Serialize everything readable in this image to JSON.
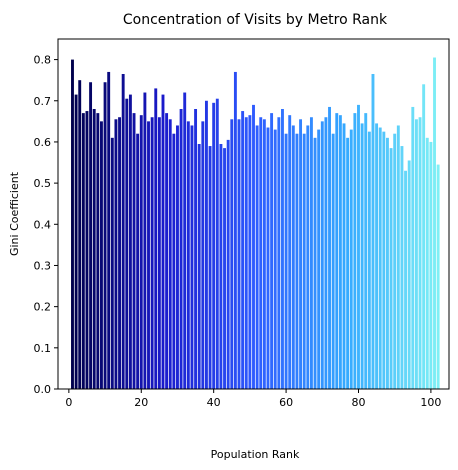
{
  "chart_data": {
    "type": "bar",
    "title": "Concentration of Visits by Metro Rank",
    "xlabel": "Population Rank",
    "ylabel": "Gini Coefficient",
    "xlim": [
      -3,
      105
    ],
    "ylim": [
      0,
      0.85
    ],
    "xticks": [
      0,
      20,
      40,
      60,
      80,
      100
    ],
    "yticks": [
      0.0,
      0.1,
      0.2,
      0.3,
      0.4,
      0.5,
      0.6,
      0.7,
      0.8
    ],
    "colormap": [
      "#00004d",
      "#1a1acc",
      "#2e5bff",
      "#35aaff",
      "#7ff0f5"
    ],
    "x": [
      1,
      2,
      3,
      4,
      5,
      6,
      7,
      8,
      9,
      10,
      11,
      12,
      13,
      14,
      15,
      16,
      17,
      18,
      19,
      20,
      21,
      22,
      23,
      24,
      25,
      26,
      27,
      28,
      29,
      30,
      31,
      32,
      33,
      34,
      35,
      36,
      37,
      38,
      39,
      40,
      41,
      42,
      43,
      44,
      45,
      46,
      47,
      48,
      49,
      50,
      51,
      52,
      53,
      54,
      55,
      56,
      57,
      58,
      59,
      60,
      61,
      62,
      63,
      64,
      65,
      66,
      67,
      68,
      69,
      70,
      71,
      72,
      73,
      74,
      75,
      76,
      77,
      78,
      79,
      80,
      81,
      82,
      83,
      84,
      85,
      86,
      87,
      88,
      89,
      90,
      91,
      92,
      93,
      94,
      95,
      96,
      97,
      98,
      99,
      100,
      101,
      102
    ],
    "values": [
      0.8,
      0.715,
      0.75,
      0.67,
      0.675,
      0.745,
      0.68,
      0.67,
      0.65,
      0.745,
      0.77,
      0.61,
      0.655,
      0.66,
      0.765,
      0.705,
      0.715,
      0.67,
      0.62,
      0.665,
      0.72,
      0.65,
      0.66,
      0.73,
      0.66,
      0.715,
      0.67,
      0.655,
      0.62,
      0.64,
      0.68,
      0.72,
      0.65,
      0.64,
      0.68,
      0.595,
      0.65,
      0.7,
      0.59,
      0.695,
      0.705,
      0.595,
      0.585,
      0.605,
      0.655,
      0.77,
      0.655,
      0.675,
      0.66,
      0.665,
      0.69,
      0.64,
      0.66,
      0.655,
      0.635,
      0.67,
      0.63,
      0.66,
      0.68,
      0.62,
      0.665,
      0.64,
      0.62,
      0.655,
      0.62,
      0.64,
      0.66,
      0.61,
      0.63,
      0.65,
      0.66,
      0.685,
      0.62,
      0.67,
      0.665,
      0.645,
      0.61,
      0.63,
      0.67,
      0.69,
      0.645,
      0.67,
      0.625,
      0.765,
      0.645,
      0.635,
      0.625,
      0.61,
      0.585,
      0.62,
      0.64,
      0.59,
      0.53,
      0.555,
      0.685,
      0.655,
      0.66,
      0.74,
      0.61,
      0.6,
      0.805,
      0.545
    ]
  }
}
